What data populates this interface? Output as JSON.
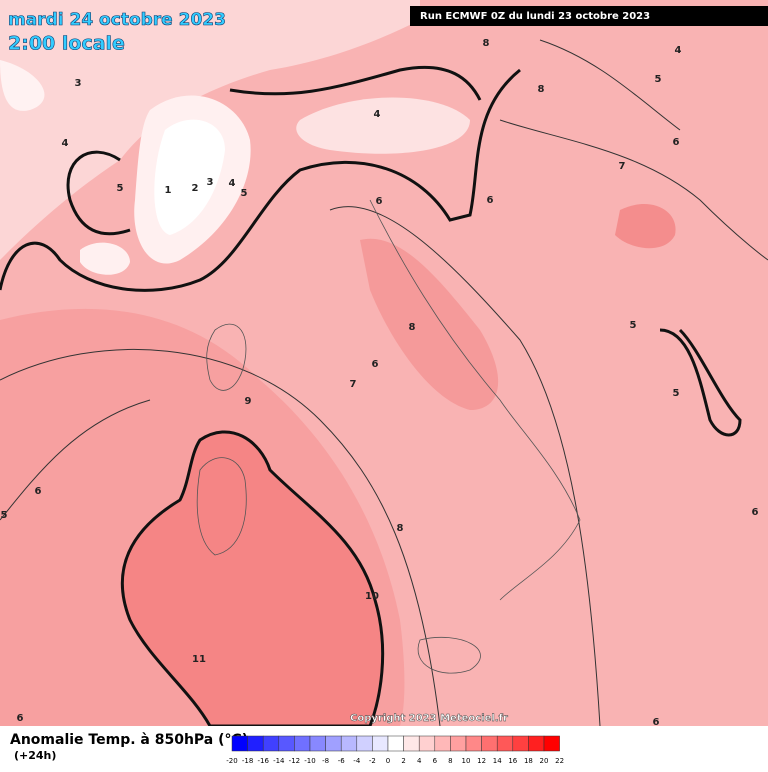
{
  "header": {
    "date": "mardi 24 octobre 2023",
    "time": "2:00 locale",
    "run": "Run ECMWF 0Z du lundi 23 octobre 2023"
  },
  "footer": {
    "copyright": "Copyright 2023 Meteociel.fr",
    "variable": "Anomalie Temp. à 850hPa (°C)",
    "lead": "(+24h)"
  },
  "colorbar": {
    "labels": [
      -20,
      -18,
      -16,
      -14,
      -12,
      -10,
      -8,
      -6,
      -4,
      -2,
      0,
      2,
      4,
      6,
      8,
      10,
      12,
      14,
      16,
      18,
      20,
      22
    ],
    "colors": [
      "#0000ff",
      "#2020ff",
      "#4040ff",
      "#5858ff",
      "#7070ff",
      "#8888ff",
      "#a0a0ff",
      "#b8b8ff",
      "#d0d0ff",
      "#e8e8ff",
      "#ffffff",
      "#ffe8e8",
      "#ffd0d0",
      "#ffb8b8",
      "#ffa0a0",
      "#ff8888",
      "#ff7070",
      "#ff5858",
      "#ff4040",
      "#ff2020",
      "#ff0000"
    ]
  },
  "contour_labels": [
    3,
    4,
    5,
    1,
    2,
    3,
    4,
    5,
    4,
    6,
    8,
    6,
    7,
    9,
    8,
    10,
    11,
    6,
    7,
    6,
    5,
    4,
    8,
    8,
    5,
    5,
    6,
    5,
    6,
    6,
    6
  ]
}
